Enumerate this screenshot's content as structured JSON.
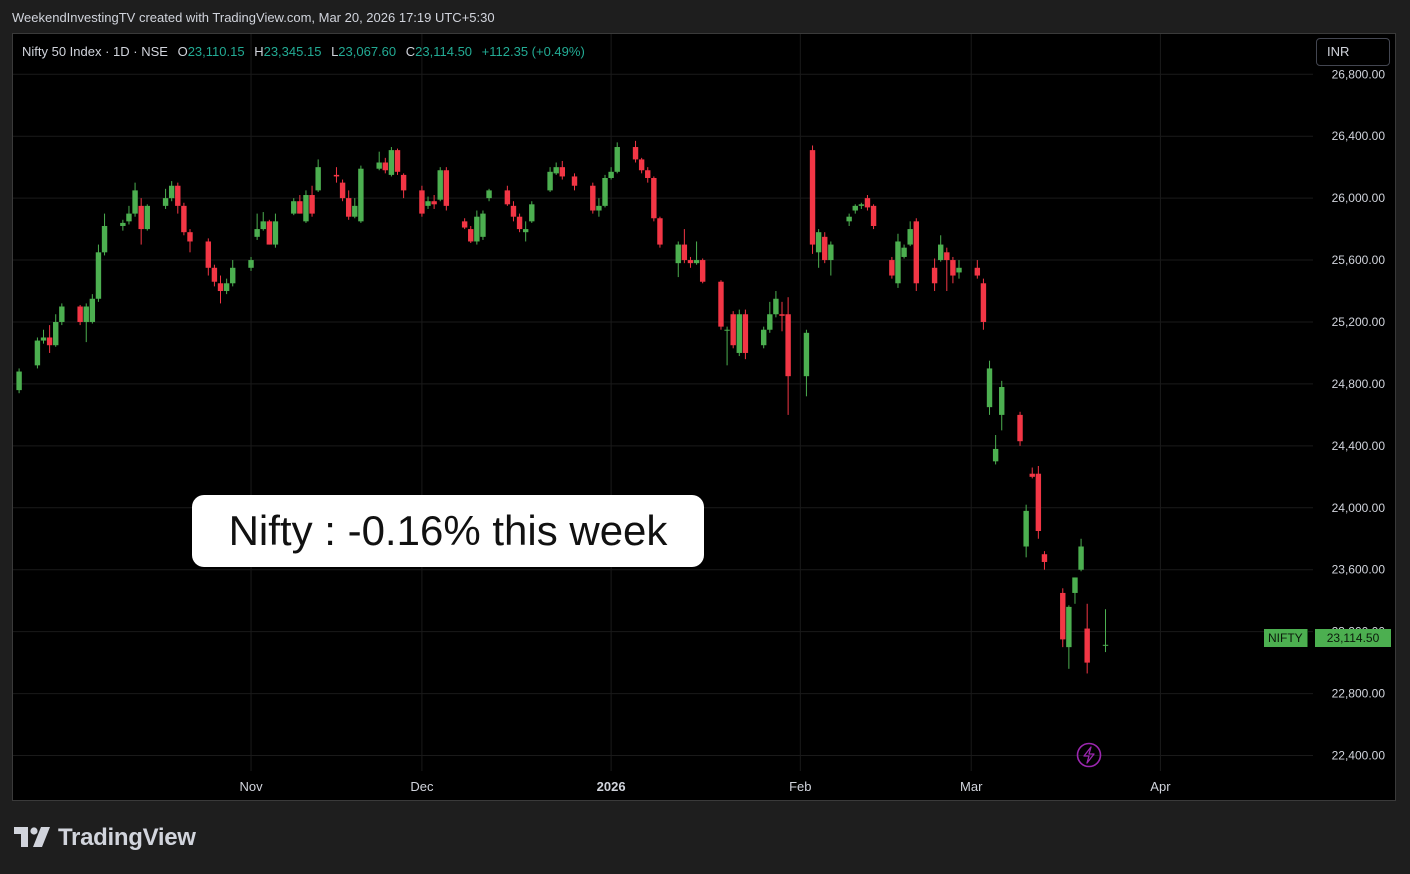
{
  "header": {
    "caption": "WeekendInvestingTV created with TradingView.com, Mar 20, 2026 17:19 UTC+5:30"
  },
  "legend": {
    "symbol": "Nifty 50 Index · 1D · NSE",
    "open_label": "O",
    "open": "23,110.15",
    "high_label": "H",
    "high": "23,345.15",
    "low_label": "L",
    "low": "23,067.60",
    "close_label": "C",
    "close": "23,114.50",
    "change": "+112.35 (+0.49%)",
    "color": "#22ab94"
  },
  "currency_button": {
    "label": "INR"
  },
  "annotation": {
    "text": "Nifty : -0.16% this week"
  },
  "price_tag": {
    "symbol": "NIFTY",
    "price": "23,114.50",
    "color": "#4caf50"
  },
  "footer": {
    "brand": "TradingView"
  },
  "colors": {
    "up": "#26a69a",
    "up_body": "#4caf50",
    "down": "#f23645",
    "background": "#000000",
    "grid": "#1a1a1a"
  },
  "chart_data": {
    "type": "candlestick",
    "title": "Nifty 50 Index · 1D · NSE",
    "y_ticks": [
      22400,
      22800,
      23200,
      23600,
      24000,
      24400,
      24800,
      25200,
      25600,
      26000,
      26400,
      26800
    ],
    "y_tick_labels": [
      "22,400.00",
      "22,800.00",
      "23,200.00",
      "23,600.00",
      "24,000.00",
      "24,400.00",
      "24,800.00",
      "25,200.00",
      "25,600.00",
      "26,000.00",
      "26,400.00",
      "26,800.00"
    ],
    "ylim": [
      22300,
      27060
    ],
    "x_ticks": [
      {
        "label": "Nov",
        "date": "2025-11-03",
        "bold": false
      },
      {
        "label": "Dec",
        "date": "2025-12-01",
        "bold": false
      },
      {
        "label": "2026",
        "date": "2026-01-01",
        "bold": true
      },
      {
        "label": "Feb",
        "date": "2026-02-01",
        "bold": false
      },
      {
        "label": "Mar",
        "date": "2026-03-01",
        "bold": false
      },
      {
        "label": "Apr",
        "date": "2026-04-01",
        "bold": false
      }
    ],
    "xlim": [
      "2025-09-25",
      "2026-04-26"
    ],
    "grid": true,
    "candles": [
      {
        "date": "2025-09-26",
        "o": 24760,
        "h": 24900,
        "l": 24740,
        "c": 24880
      },
      {
        "date": "2025-09-29",
        "o": 24920,
        "h": 25100,
        "l": 24900,
        "c": 25080
      },
      {
        "date": "2025-09-30",
        "o": 25080,
        "h": 25150,
        "l": 25060,
        "c": 25100
      },
      {
        "date": "2025-10-01",
        "o": 25100,
        "h": 25180,
        "l": 25000,
        "c": 25050
      },
      {
        "date": "2025-10-02",
        "o": 25050,
        "h": 25250,
        "l": 25040,
        "c": 25200
      },
      {
        "date": "2025-10-03",
        "o": 25200,
        "h": 25320,
        "l": 25180,
        "c": 25300
      },
      {
        "date": "2025-10-06",
        "o": 25300,
        "h": 25310,
        "l": 25180,
        "c": 25200
      },
      {
        "date": "2025-10-07",
        "o": 25200,
        "h": 25320,
        "l": 25070,
        "c": 25300
      },
      {
        "date": "2025-10-08",
        "o": 25200,
        "h": 25380,
        "l": 25190,
        "c": 25350
      },
      {
        "date": "2025-10-09",
        "o": 25350,
        "h": 25700,
        "l": 25330,
        "c": 25650
      },
      {
        "date": "2025-10-10",
        "o": 25650,
        "h": 25900,
        "l": 25630,
        "c": 25820
      },
      {
        "date": "2025-10-13",
        "o": 25820,
        "h": 25860,
        "l": 25790,
        "c": 25840
      },
      {
        "date": "2025-10-14",
        "o": 25850,
        "h": 25950,
        "l": 25830,
        "c": 25900
      },
      {
        "date": "2025-10-15",
        "o": 25900,
        "h": 26100,
        "l": 25880,
        "c": 26050
      },
      {
        "date": "2025-10-16",
        "o": 25950,
        "h": 26000,
        "l": 25700,
        "c": 25800
      },
      {
        "date": "2025-10-17",
        "o": 25800,
        "h": 25960,
        "l": 25790,
        "c": 25950
      },
      {
        "date": "2025-10-20",
        "o": 25950,
        "h": 26060,
        "l": 25930,
        "c": 26000
      },
      {
        "date": "2025-10-21",
        "o": 26000,
        "h": 26110,
        "l": 25980,
        "c": 26080
      },
      {
        "date": "2025-10-22",
        "o": 26080,
        "h": 26100,
        "l": 25900,
        "c": 25950
      },
      {
        "date": "2025-10-23",
        "o": 25950,
        "h": 25970,
        "l": 25760,
        "c": 25780
      },
      {
        "date": "2025-10-24",
        "o": 25780,
        "h": 25800,
        "l": 25650,
        "c": 25720
      },
      {
        "date": "2025-10-27",
        "o": 25720,
        "h": 25740,
        "l": 25500,
        "c": 25550
      },
      {
        "date": "2025-10-28",
        "o": 25550,
        "h": 25570,
        "l": 25430,
        "c": 25460
      },
      {
        "date": "2025-10-29",
        "o": 25450,
        "h": 25500,
        "l": 25320,
        "c": 25400
      },
      {
        "date": "2025-10-30",
        "o": 25400,
        "h": 25480,
        "l": 25380,
        "c": 25450
      },
      {
        "date": "2025-10-31",
        "o": 25450,
        "h": 25600,
        "l": 25430,
        "c": 25550
      },
      {
        "date": "2025-11-03",
        "o": 25550,
        "h": 25620,
        "l": 25530,
        "c": 25600
      },
      {
        "date": "2025-11-04",
        "o": 25750,
        "h": 25900,
        "l": 25730,
        "c": 25800
      },
      {
        "date": "2025-11-05",
        "o": 25800,
        "h": 25910,
        "l": 25790,
        "c": 25850
      },
      {
        "date": "2025-11-06",
        "o": 25850,
        "h": 25860,
        "l": 25700,
        "c": 25700
      },
      {
        "date": "2025-11-07",
        "o": 25700,
        "h": 25900,
        "l": 25680,
        "c": 25850
      },
      {
        "date": "2025-11-10",
        "o": 25900,
        "h": 26000,
        "l": 25890,
        "c": 25980
      },
      {
        "date": "2025-11-11",
        "o": 25980,
        "h": 26020,
        "l": 25900,
        "c": 25900
      },
      {
        "date": "2025-11-12",
        "o": 25850,
        "h": 26050,
        "l": 25840,
        "c": 26020
      },
      {
        "date": "2025-11-13",
        "o": 26020,
        "h": 26080,
        "l": 25880,
        "c": 25900
      },
      {
        "date": "2025-11-14",
        "o": 26050,
        "h": 26250,
        "l": 26040,
        "c": 26200
      },
      {
        "date": "2025-11-17",
        "o": 26150,
        "h": 26200,
        "l": 26100,
        "c": 26140
      },
      {
        "date": "2025-11-18",
        "o": 26100,
        "h": 26120,
        "l": 25980,
        "c": 26000
      },
      {
        "date": "2025-11-19",
        "o": 26000,
        "h": 26050,
        "l": 25860,
        "c": 25880
      },
      {
        "date": "2025-11-20",
        "o": 25880,
        "h": 26000,
        "l": 25870,
        "c": 25950
      },
      {
        "date": "2025-11-21",
        "o": 25850,
        "h": 26210,
        "l": 25840,
        "c": 26190
      },
      {
        "date": "2025-11-24",
        "o": 26190,
        "h": 26300,
        "l": 26180,
        "c": 26230
      },
      {
        "date": "2025-11-25",
        "o": 26230,
        "h": 26260,
        "l": 26160,
        "c": 26180
      },
      {
        "date": "2025-11-26",
        "o": 26150,
        "h": 26330,
        "l": 26140,
        "c": 26310
      },
      {
        "date": "2025-11-27",
        "o": 26310,
        "h": 26320,
        "l": 26150,
        "c": 26170
      },
      {
        "date": "2025-11-28",
        "o": 26150,
        "h": 26160,
        "l": 26000,
        "c": 26050
      },
      {
        "date": "2025-12-01",
        "o": 26050,
        "h": 26080,
        "l": 25880,
        "c": 25900
      },
      {
        "date": "2025-12-02",
        "o": 25950,
        "h": 26010,
        "l": 25930,
        "c": 25980
      },
      {
        "date": "2025-12-03",
        "o": 25980,
        "h": 26020,
        "l": 25930,
        "c": 25960
      },
      {
        "date": "2025-12-04",
        "o": 25990,
        "h": 26200,
        "l": 25980,
        "c": 26180
      },
      {
        "date": "2025-12-05",
        "o": 26180,
        "h": 26200,
        "l": 25920,
        "c": 25950
      },
      {
        "date": "2025-12-08",
        "o": 25850,
        "h": 25870,
        "l": 25800,
        "c": 25810
      },
      {
        "date": "2025-12-09",
        "o": 25800,
        "h": 25820,
        "l": 25710,
        "c": 25720
      },
      {
        "date": "2025-12-10",
        "o": 25720,
        "h": 25920,
        "l": 25700,
        "c": 25880
      },
      {
        "date": "2025-12-11",
        "o": 25750,
        "h": 25920,
        "l": 25730,
        "c": 25900
      },
      {
        "date": "2025-12-12",
        "o": 26000,
        "h": 26060,
        "l": 25980,
        "c": 26050
      },
      {
        "date": "2025-12-15",
        "o": 26050,
        "h": 26080,
        "l": 25950,
        "c": 25960
      },
      {
        "date": "2025-12-16",
        "o": 25950,
        "h": 25980,
        "l": 25850,
        "c": 25880
      },
      {
        "date": "2025-12-17",
        "o": 25880,
        "h": 25900,
        "l": 25780,
        "c": 25800
      },
      {
        "date": "2025-12-18",
        "o": 25780,
        "h": 25850,
        "l": 25720,
        "c": 25800
      },
      {
        "date": "2025-12-19",
        "o": 25850,
        "h": 25980,
        "l": 25840,
        "c": 25960
      },
      {
        "date": "2025-12-22",
        "o": 26050,
        "h": 26200,
        "l": 26040,
        "c": 26170
      },
      {
        "date": "2025-12-23",
        "o": 26160,
        "h": 26230,
        "l": 26150,
        "c": 26200
      },
      {
        "date": "2025-12-24",
        "o": 26200,
        "h": 26240,
        "l": 26120,
        "c": 26140
      },
      {
        "date": "2025-12-26",
        "o": 26140,
        "h": 26160,
        "l": 26050,
        "c": 26080
      },
      {
        "date": "2025-12-29",
        "o": 26080,
        "h": 26100,
        "l": 25900,
        "c": 25920
      },
      {
        "date": "2025-12-30",
        "o": 25920,
        "h": 26000,
        "l": 25880,
        "c": 25950
      },
      {
        "date": "2025-12-31",
        "o": 25950,
        "h": 26150,
        "l": 25940,
        "c": 26130
      },
      {
        "date": "2026-01-01",
        "o": 26130,
        "h": 26200,
        "l": 26120,
        "c": 26170
      },
      {
        "date": "2026-01-02",
        "o": 26170,
        "h": 26360,
        "l": 26160,
        "c": 26330
      },
      {
        "date": "2026-01-05",
        "o": 26330,
        "h": 26370,
        "l": 26230,
        "c": 26250
      },
      {
        "date": "2026-01-06",
        "o": 26250,
        "h": 26260,
        "l": 26160,
        "c": 26180
      },
      {
        "date": "2026-01-07",
        "o": 26180,
        "h": 26200,
        "l": 26100,
        "c": 26130
      },
      {
        "date": "2026-01-08",
        "o": 26130,
        "h": 26140,
        "l": 25850,
        "c": 25870
      },
      {
        "date": "2026-01-09",
        "o": 25870,
        "h": 25880,
        "l": 25680,
        "c": 25700
      },
      {
        "date": "2026-01-12",
        "o": 25580,
        "h": 25720,
        "l": 25490,
        "c": 25700
      },
      {
        "date": "2026-01-13",
        "o": 25700,
        "h": 25800,
        "l": 25580,
        "c": 25600
      },
      {
        "date": "2026-01-14",
        "o": 25600,
        "h": 25620,
        "l": 25550,
        "c": 25580
      },
      {
        "date": "2026-01-15",
        "o": 25580,
        "h": 25720,
        "l": 25570,
        "c": 25600
      },
      {
        "date": "2026-01-16",
        "o": 25600,
        "h": 25610,
        "l": 25450,
        "c": 25460
      },
      {
        "date": "2026-01-19",
        "o": 25460,
        "h": 25470,
        "l": 25150,
        "c": 25170
      },
      {
        "date": "2026-01-20",
        "o": 25150,
        "h": 25170,
        "l": 24920,
        "c": 25150
      },
      {
        "date": "2026-01-21",
        "o": 25250,
        "h": 25270,
        "l": 25030,
        "c": 25050
      },
      {
        "date": "2026-01-22",
        "o": 25000,
        "h": 25280,
        "l": 24980,
        "c": 25250
      },
      {
        "date": "2026-01-23",
        "o": 25250,
        "h": 25280,
        "l": 24960,
        "c": 25000
      },
      {
        "date": "2026-01-26",
        "o": 25050,
        "h": 25170,
        "l": 25030,
        "c": 25150
      },
      {
        "date": "2026-01-27",
        "o": 25150,
        "h": 25330,
        "l": 25130,
        "c": 25250
      },
      {
        "date": "2026-01-28",
        "o": 25250,
        "h": 25400,
        "l": 25230,
        "c": 25350
      },
      {
        "date": "2026-01-29",
        "o": 25250,
        "h": 25330,
        "l": 25140,
        "c": 25240
      },
      {
        "date": "2026-01-30",
        "o": 25250,
        "h": 25360,
        "l": 24600,
        "c": 24850
      },
      {
        "date": "2026-02-02",
        "o": 24850,
        "h": 25150,
        "l": 24720,
        "c": 25130
      },
      {
        "date": "2026-02-03",
        "o": 26310,
        "h": 26340,
        "l": 25640,
        "c": 25700
      },
      {
        "date": "2026-02-04",
        "o": 25650,
        "h": 25800,
        "l": 25550,
        "c": 25780
      },
      {
        "date": "2026-02-05",
        "o": 25750,
        "h": 25780,
        "l": 25580,
        "c": 25600
      },
      {
        "date": "2026-02-06",
        "o": 25600,
        "h": 25720,
        "l": 25500,
        "c": 25700
      },
      {
        "date": "2026-02-09",
        "o": 25850,
        "h": 25900,
        "l": 25820,
        "c": 25880
      },
      {
        "date": "2026-02-10",
        "o": 25920,
        "h": 25960,
        "l": 25900,
        "c": 25950
      },
      {
        "date": "2026-02-11",
        "o": 25950,
        "h": 25970,
        "l": 25930,
        "c": 25960
      },
      {
        "date": "2026-02-12",
        "o": 26000,
        "h": 26020,
        "l": 25920,
        "c": 25940
      },
      {
        "date": "2026-02-13",
        "o": 25950,
        "h": 25960,
        "l": 25800,
        "c": 25820
      },
      {
        "date": "2026-02-16",
        "o": 25600,
        "h": 25620,
        "l": 25480,
        "c": 25500
      },
      {
        "date": "2026-02-17",
        "o": 25450,
        "h": 25770,
        "l": 25420,
        "c": 25720
      },
      {
        "date": "2026-02-18",
        "o": 25620,
        "h": 25700,
        "l": 25610,
        "c": 25680
      },
      {
        "date": "2026-02-19",
        "o": 25700,
        "h": 25850,
        "l": 25690,
        "c": 25800
      },
      {
        "date": "2026-02-20",
        "o": 25850,
        "h": 25870,
        "l": 25400,
        "c": 25450
      },
      {
        "date": "2026-02-23",
        "o": 25550,
        "h": 25610,
        "l": 25400,
        "c": 25450
      },
      {
        "date": "2026-02-24",
        "o": 25600,
        "h": 25760,
        "l": 25590,
        "c": 25700
      },
      {
        "date": "2026-02-25",
        "o": 25650,
        "h": 25680,
        "l": 25400,
        "c": 25600
      },
      {
        "date": "2026-02-26",
        "o": 25600,
        "h": 25620,
        "l": 25450,
        "c": 25500
      },
      {
        "date": "2026-02-27",
        "o": 25520,
        "h": 25600,
        "l": 25480,
        "c": 25550
      },
      {
        "date": "2026-03-02",
        "o": 25550,
        "h": 25600,
        "l": 25480,
        "c": 25500
      },
      {
        "date": "2026-03-03",
        "o": 25450,
        "h": 25480,
        "l": 25150,
        "c": 25200
      },
      {
        "date": "2026-03-04",
        "o": 24650,
        "h": 24950,
        "l": 24600,
        "c": 24900
      },
      {
        "date": "2026-03-05",
        "o": 24300,
        "h": 24470,
        "l": 24280,
        "c": 24380
      },
      {
        "date": "2026-03-06",
        "o": 24600,
        "h": 24820,
        "l": 24500,
        "c": 24780
      },
      {
        "date": "2026-03-09",
        "o": 24600,
        "h": 24620,
        "l": 24400,
        "c": 24430
      },
      {
        "date": "2026-03-10",
        "o": 23750,
        "h": 24020,
        "l": 23680,
        "c": 23980
      },
      {
        "date": "2026-03-11",
        "o": 24220,
        "h": 24260,
        "l": 24190,
        "c": 24200
      },
      {
        "date": "2026-03-12",
        "o": 24220,
        "h": 24270,
        "l": 23800,
        "c": 23850
      },
      {
        "date": "2026-03-13",
        "o": 23700,
        "h": 23720,
        "l": 23600,
        "c": 23650
      },
      {
        "date": "2026-03-16",
        "o": 23450,
        "h": 23480,
        "l": 23100,
        "c": 23150
      },
      {
        "date": "2026-03-17",
        "o": 23100,
        "h": 23370,
        "l": 22960,
        "c": 23360
      },
      {
        "date": "2026-03-18",
        "o": 23450,
        "h": 23550,
        "l": 23380,
        "c": 23550
      },
      {
        "date": "2026-03-19",
        "o": 23600,
        "h": 23800,
        "l": 23590,
        "c": 23750
      },
      {
        "date": "2026-03-20",
        "o": 23220,
        "h": 23380,
        "l": 22930,
        "c": 23000
      },
      {
        "date": "2026-03-23",
        "o": 23110,
        "h": 23345,
        "l": 23068,
        "c": 23115
      }
    ]
  }
}
